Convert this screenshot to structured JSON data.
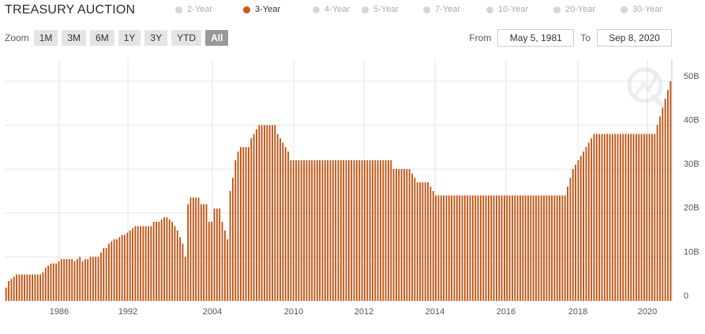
{
  "title": "TREASURY AUCTION",
  "legend": [
    {
      "label": "2-Year",
      "active": false
    },
    {
      "label": "3-Year",
      "active": true
    },
    {
      "label": "4-Year",
      "active": false
    },
    {
      "label": "5-Year",
      "active": false
    },
    {
      "label": "7-Year",
      "active": false
    },
    {
      "label": "10-Year",
      "active": false
    },
    {
      "label": "20-Year",
      "active": false
    },
    {
      "label": "30-Year",
      "active": false
    }
  ],
  "zoom": {
    "label": "Zoom",
    "buttons": [
      "1M",
      "3M",
      "6M",
      "1Y",
      "3Y",
      "YTD",
      "All"
    ],
    "active": "All"
  },
  "range": {
    "from_label": "From",
    "from_value": "May 5, 1981",
    "to_label": "To",
    "to_value": "Sep 8, 2020"
  },
  "colors": {
    "bar": "#c1500f",
    "active_dot": "#d0551a",
    "inactive_dot": "#d6d6d6",
    "grid": "#e6e6e6"
  },
  "chart_data": {
    "type": "bar",
    "x_tick_labels": [
      "1986",
      "1992",
      "2004",
      "2010",
      "2012",
      "2014",
      "2016",
      "2018",
      "2020"
    ],
    "y_tick_labels": [
      "0",
      "10B",
      "20B",
      "30B",
      "40B",
      "50B"
    ],
    "y_ticks": [
      0,
      10,
      20,
      30,
      40,
      50
    ],
    "ylim": [
      0,
      55
    ],
    "y_unit": "billions USD",
    "grid": true,
    "values": [
      3,
      4.5,
      5,
      5.5,
      6,
      6,
      6,
      6,
      6,
      6,
      6,
      6,
      6,
      6,
      6.5,
      7.5,
      8,
      8.5,
      8.5,
      8.5,
      9,
      9.5,
      9.5,
      9.5,
      9.5,
      9.5,
      9,
      9.5,
      10,
      9,
      9.5,
      9.5,
      10,
      10,
      10,
      10,
      11,
      12,
      12,
      13,
      13.5,
      14,
      14,
      14.5,
      15,
      15,
      15.5,
      16,
      16.5,
      17,
      17,
      17,
      17,
      17,
      17,
      17,
      18,
      18,
      18,
      18.5,
      19,
      19,
      18.5,
      18,
      17,
      16,
      14.5,
      13,
      10,
      22,
      23.5,
      23.5,
      23.5,
      23.5,
      22,
      22,
      22,
      18,
      18,
      21,
      21,
      21,
      18,
      16,
      14,
      25,
      28,
      32,
      34,
      35,
      35,
      35,
      35,
      37,
      38,
      39,
      40,
      40,
      40,
      40,
      40,
      40,
      40,
      38,
      37,
      36,
      35,
      34,
      32,
      32,
      32,
      32,
      32,
      32,
      32,
      32,
      32,
      32,
      32,
      32,
      32,
      32,
      32,
      32,
      32,
      32,
      32,
      32,
      32,
      32,
      32,
      32,
      32,
      32,
      32,
      32,
      32,
      32,
      32,
      32,
      32,
      32,
      32,
      32,
      32,
      32,
      32,
      30,
      30,
      30,
      30,
      30,
      30,
      30,
      29,
      28,
      27,
      27,
      27,
      27,
      27,
      26,
      25,
      24,
      24,
      24,
      24,
      24,
      24,
      24,
      24,
      24,
      24,
      24,
      24,
      24,
      24,
      24,
      24,
      24,
      24,
      24,
      24,
      24,
      24,
      24,
      24,
      24,
      24,
      24,
      24,
      24,
      24,
      24,
      24,
      24,
      24,
      24,
      24,
      24,
      24,
      24,
      24,
      24,
      24,
      24,
      24,
      24,
      24,
      24,
      24,
      24,
      24,
      26,
      28,
      30,
      31,
      32,
      33,
      34,
      35,
      36,
      37,
      38,
      38,
      38,
      38,
      38,
      38,
      38,
      38,
      38,
      38,
      38,
      38,
      38,
      38,
      38,
      38,
      38,
      38,
      38,
      38,
      38,
      38,
      38,
      38,
      40,
      42,
      44,
      46,
      48,
      50
    ]
  }
}
